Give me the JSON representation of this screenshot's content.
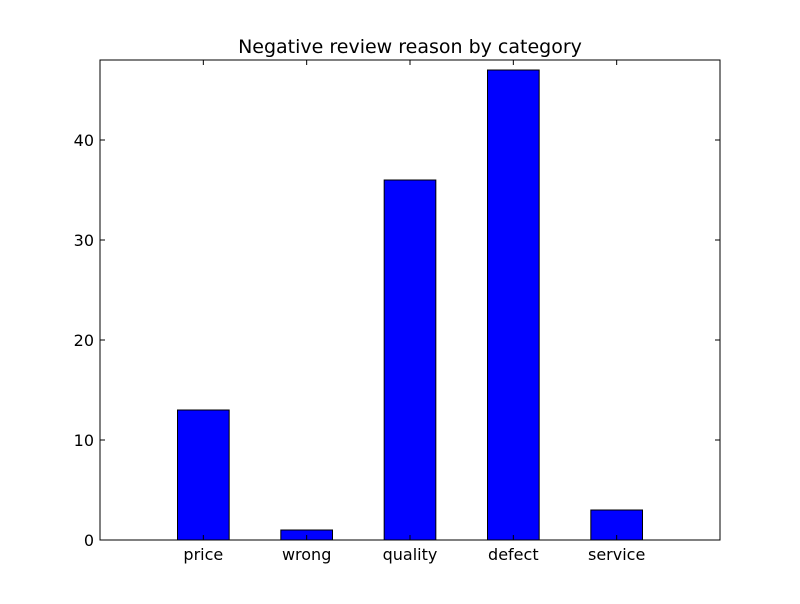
{
  "chart_data": {
    "type": "bar",
    "title": "Negative review reason by category",
    "categories": [
      "price",
      "wrong",
      "quality",
      "defect",
      "service"
    ],
    "values": [
      13,
      1,
      36,
      47,
      3
    ],
    "xlabel": "",
    "ylabel": "",
    "ylim": [
      0,
      48
    ],
    "y_ticks": [
      0,
      10,
      20,
      30,
      40
    ],
    "grid": false,
    "bar_color": "#0000ff",
    "edge_color": "#000000"
  }
}
